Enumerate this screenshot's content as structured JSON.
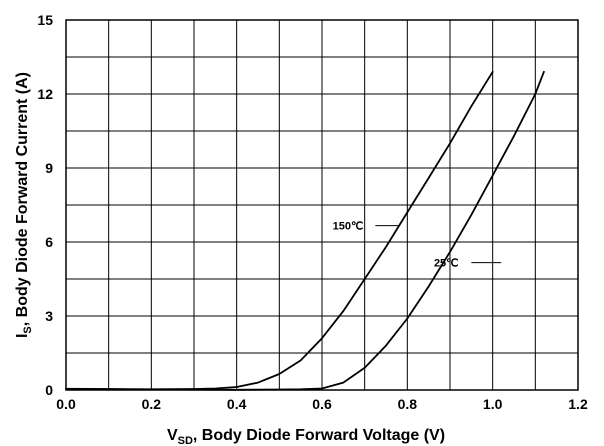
{
  "chart_data": {
    "type": "line",
    "xlabel": {
      "main": "V",
      "sub": "SD",
      "rest": ", Body Diode Forward Voltage (V)"
    },
    "ylabel": {
      "main": "I",
      "sub": "S",
      "rest": ", Body Diode Forward Current (A)"
    },
    "xlim": [
      0,
      1.2
    ],
    "ylim": [
      0,
      15
    ],
    "xticks": [
      "0.0",
      "0.2",
      "0.4",
      "0.6",
      "0.8",
      "1.0",
      "1.2"
    ],
    "yticks": [
      "0",
      "3",
      "6",
      "9",
      "12",
      "15"
    ],
    "grid": {
      "x_minor_step": 0.1,
      "y_minor_step": 1.5
    },
    "series": [
      {
        "name": "150℃",
        "x": [
          0.0,
          0.1,
          0.2,
          0.3,
          0.35,
          0.4,
          0.45,
          0.5,
          0.55,
          0.6,
          0.65,
          0.7,
          0.75,
          0.8,
          0.85,
          0.9,
          0.95,
          1.0
        ],
        "y": [
          0.05,
          0.04,
          0.03,
          0.04,
          0.06,
          0.12,
          0.3,
          0.65,
          1.2,
          2.1,
          3.2,
          4.5,
          5.8,
          7.2,
          8.6,
          10.0,
          11.5,
          12.9
        ]
      },
      {
        "name": "25℃",
        "x": [
          0.0,
          0.2,
          0.4,
          0.5,
          0.55,
          0.6,
          0.65,
          0.7,
          0.75,
          0.8,
          0.85,
          0.9,
          0.95,
          1.0,
          1.05,
          1.1,
          1.12
        ],
        "y": [
          0.04,
          0.02,
          0.01,
          0.02,
          0.03,
          0.06,
          0.3,
          0.9,
          1.8,
          2.9,
          4.2,
          5.6,
          7.1,
          8.7,
          10.3,
          12.0,
          12.9
        ]
      }
    ]
  }
}
